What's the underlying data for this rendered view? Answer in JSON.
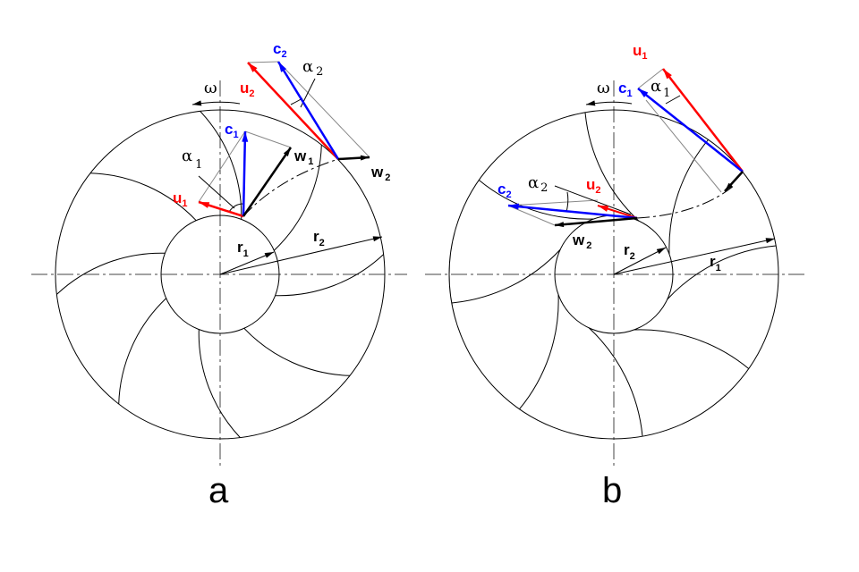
{
  "colors": {
    "u": "#ff0000",
    "c": "#0000ff",
    "w": "#000000",
    "guide": "#888888"
  },
  "panels": [
    {
      "caption": "a",
      "omega": "ω",
      "labels": {
        "c1": "c",
        "c1s": "1",
        "c2": "c",
        "c2s": "2",
        "u1": "u",
        "u1s": "1",
        "u2": "u",
        "u2s": "2",
        "w1": "w",
        "w1s": "1",
        "w2": "w",
        "w2s": "2",
        "a1": "α",
        "a1s": "1",
        "a2": "α",
        "a2s": "2",
        "r1": "r",
        "r1s": "1",
        "r2": "r",
        "r2s": "2"
      }
    },
    {
      "caption": "b",
      "omega": "ω",
      "labels": {
        "c1": "c",
        "c1s": "1",
        "c2": "c",
        "c2s": "2",
        "u1": "u",
        "u1s": "1",
        "u2": "u",
        "u2s": "2",
        "w2": "w",
        "w2s": "2",
        "a1": "α",
        "a1s": "1",
        "a2": "α",
        "a2s": "2",
        "r1": "r",
        "r1s": "1",
        "r2": "r",
        "r2s": "2"
      }
    }
  ]
}
